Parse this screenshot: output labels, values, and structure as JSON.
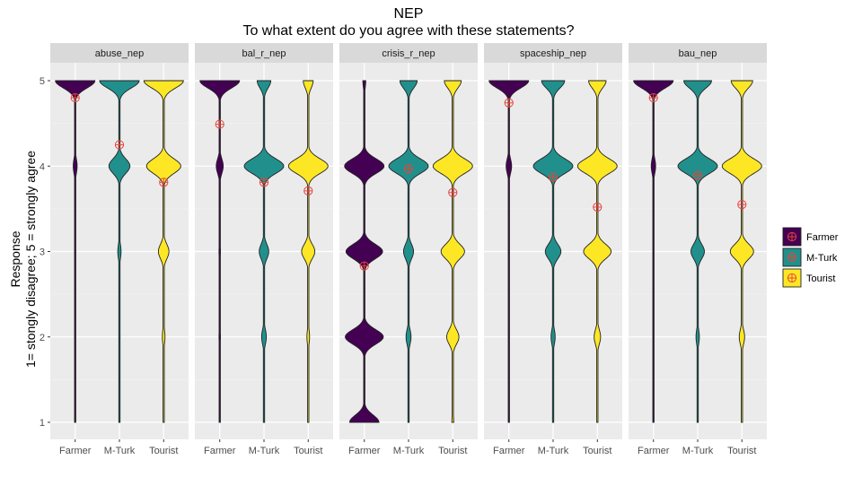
{
  "chart_data": {
    "type": "violin",
    "title": "NEP",
    "subtitle": "To what extent do you agree with these statements?",
    "ylabel_line1": "Response",
    "ylabel_line2": "1= stongly disagree; 5 = strongly agree",
    "xlabel": "",
    "categories": [
      "Farmer",
      "M-Turk",
      "Tourist"
    ],
    "ylim": [
      1,
      5
    ],
    "yticks": [
      1,
      2,
      3,
      4,
      5
    ],
    "grid": true,
    "legend_position": "right",
    "colors": {
      "Farmer": "#440154",
      "M-Turk": "#21908c",
      "Tourist": "#fde725"
    },
    "mean_marker_color": "#e8443a",
    "facets": [
      {
        "name": "abuse_nep",
        "means": [
          4.8,
          4.25,
          3.81
        ],
        "shares": [
          [
            0,
            0,
            0.01,
            0.09,
            0.9
          ],
          [
            0.01,
            0.02,
            0.05,
            0.32,
            0.6
          ],
          [
            0.01,
            0.03,
            0.12,
            0.39,
            0.45
          ]
        ]
      },
      {
        "name": "bal_r_nep",
        "means": [
          4.49,
          3.81,
          3.71
        ],
        "shares": [
          [
            0.01,
            0.03,
            0.03,
            0.14,
            0.79
          ],
          [
            0.01,
            0.07,
            0.14,
            0.58,
            0.2
          ],
          [
            0.01,
            0.04,
            0.2,
            0.6,
            0.15
          ]
        ]
      },
      {
        "name": "crisis_r_nep",
        "means": [
          2.83,
          3.97,
          3.69
        ],
        "shares": [
          [
            0.2,
            0.26,
            0.25,
            0.27,
            0.02
          ],
          [
            0,
            0.07,
            0.14,
            0.55,
            0.24
          ],
          [
            0.02,
            0.13,
            0.25,
            0.42,
            0.18
          ]
        ]
      },
      {
        "name": "spaceship_nep",
        "means": [
          4.74,
          3.87,
          3.52
        ],
        "shares": [
          [
            0,
            0,
            0.02,
            0.12,
            0.86
          ],
          [
            0,
            0.05,
            0.19,
            0.48,
            0.28
          ],
          [
            0.01,
            0.07,
            0.3,
            0.43,
            0.19
          ]
        ]
      },
      {
        "name": "bau_nep",
        "means": [
          4.8,
          3.89,
          3.55
        ],
        "shares": [
          [
            0,
            0,
            0.01,
            0.1,
            0.89
          ],
          [
            0,
            0.04,
            0.16,
            0.47,
            0.33
          ],
          [
            0,
            0.06,
            0.26,
            0.44,
            0.24
          ]
        ]
      }
    ]
  }
}
